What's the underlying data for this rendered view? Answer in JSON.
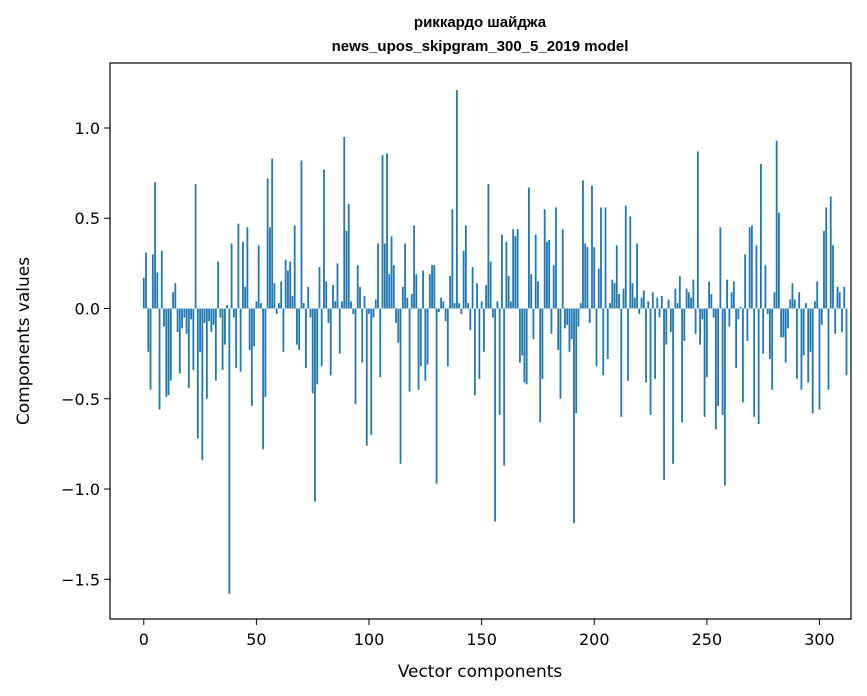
{
  "chart_data": {
    "type": "bar",
    "title_lines": [
      "риккардо шайджа",
      "news_upos_skipgram_300_5_2019 model"
    ],
    "xlabel": "Vector components",
    "ylabel": "Components values",
    "xlim": [
      -15,
      314
    ],
    "ylim": [
      -1.72,
      1.36
    ],
    "xticks": [
      0,
      50,
      100,
      150,
      200,
      250,
      300
    ],
    "yticks": [
      -1.5,
      -1.0,
      -0.5,
      0.0,
      0.5,
      1.0
    ],
    "ytick_labels": [
      "−1.5",
      "−1.0",
      "−0.5",
      "0.0",
      "0.5",
      "1.0"
    ],
    "bar_color": "#1f77b4",
    "grid": false,
    "series": [
      {
        "values": [
          0.17,
          0.31,
          -0.24,
          -0.45,
          0.3,
          0.7,
          0.2,
          -0.56,
          0.32,
          -0.1,
          -0.49,
          -0.48,
          -0.4,
          0.09,
          0.14,
          -0.13,
          -0.36,
          -0.11,
          -0.05,
          -0.14,
          -0.44,
          -0.06,
          -0.34,
          0.69,
          -0.72,
          -0.24,
          -0.84,
          -0.08,
          -0.5,
          -0.07,
          -0.13,
          -0.09,
          -0.4,
          0.26,
          -0.05,
          -0.34,
          -0.2,
          0.02,
          -1.58,
          0.36,
          -0.05,
          -0.33,
          0.47,
          -0.35,
          0.37,
          0.12,
          0.45,
          -0.23,
          -0.54,
          -0.21,
          0.04,
          0.35,
          0.03,
          -0.78,
          -0.49,
          0.72,
          0.45,
          0.83,
          0.14,
          -0.03,
          0.03,
          0.15,
          -0.24,
          0.27,
          0.21,
          0.26,
          0.07,
          0.46,
          -0.2,
          -0.23,
          0.82,
          0.03,
          -0.33,
          0.12,
          -0.05,
          -0.47,
          -1.07,
          -0.42,
          0.23,
          -0.32,
          0.77,
          0.15,
          -0.08,
          -0.37,
          0.13,
          0.04,
          0.25,
          -0.25,
          0.04,
          0.95,
          0.43,
          0.58,
          0.04,
          -0.03,
          -0.53,
          0.24,
          0.12,
          -0.3,
          0.07,
          -0.76,
          -0.03,
          -0.7,
          -0.05,
          0.05,
          0.36,
          -0.38,
          0.85,
          0.36,
          0.86,
          0.19,
          0.4,
          0.24,
          -0.08,
          -0.19,
          -0.86,
          0.12,
          0.36,
          0.06,
          -0.46,
          0.08,
          0.46,
          0.19,
          -0.45,
          -0.32,
          0.21,
          -0.4,
          -0.31,
          0.19,
          0.24,
          0.24,
          -0.97,
          -0.02,
          0.06,
          0.04,
          -0.07,
          -0.32,
          0.18,
          0.55,
          0.03,
          1.21,
          0.03,
          -0.03,
          0.32,
          0.46,
          0.03,
          -0.12,
          0.23,
          -0.48,
          0.14,
          -0.39,
          0.04,
          -0.24,
          0.13,
          0.69,
          0.26,
          -0.05,
          -1.18,
          0.04,
          -0.59,
          0.41,
          -0.87,
          0.37,
          0.18,
          0.04,
          0.44,
          0.4,
          0.44,
          -0.3,
          -0.26,
          -0.41,
          -0.42,
          0.67,
          0.19,
          -0.17,
          0.41,
          0.15,
          -0.63,
          -0.39,
          0.55,
          0.37,
          0.38,
          -0.14,
          0.24,
          0.56,
          -0.23,
          -0.5,
          0.44,
          -0.11,
          -0.09,
          -0.24,
          -0.17,
          -1.19,
          -0.58,
          -0.1,
          0.03,
          0.71,
          0.36,
          0.34,
          -0.08,
          0.68,
          0.34,
          -0.32,
          0.22,
          0.56,
          -0.37,
          0.56,
          -0.28,
          0.03,
          0.16,
          0.14,
          0.35,
          0.08,
          -0.6,
          0.11,
          0.57,
          -0.4,
          0.51,
          0.14,
          0.06,
          0.36,
          -0.03,
          0.06,
          0.1,
          -0.41,
          0.04,
          -0.59,
          0.09,
          -0.39,
          0.06,
          -0.05,
          0.07,
          -0.95,
          -0.2,
          0.05,
          -0.13,
          -0.86,
          0.11,
          0.03,
          0.18,
          -0.63,
          -0.18,
          0.11,
          0.09,
          0.06,
          0.16,
          -0.14,
          0.87,
          -0.2,
          -0.06,
          -0.6,
          -0.38,
          0.15,
          0.08,
          -0.05,
          -0.67,
          -0.54,
          0.45,
          -0.59,
          -0.98,
          0.16,
          -0.1,
          0.09,
          0.15,
          -0.33,
          -0.06,
          0.01,
          -0.52,
          0.3,
          -0.18,
          0.45,
          0.46,
          -0.6,
          0.35,
          -0.64,
          0.8,
          -0.25,
          0.24,
          -0.03,
          -0.28,
          -0.45,
          0.09,
          0.93,
          0.53,
          -0.16,
          -0.16,
          -0.3,
          -0.11,
          0.05,
          0.14,
          0.05,
          -0.39,
          0.09,
          -0.45,
          -0.26,
          0.03,
          -0.41,
          -0.24,
          -0.58,
          0.04,
          0.15,
          -0.56,
          -0.09,
          0.43,
          0.56,
          -0.45,
          0.62,
          0.35,
          -0.14,
          0.12,
          0.09,
          -0.13,
          0.12,
          -0.37
        ]
      }
    ]
  }
}
